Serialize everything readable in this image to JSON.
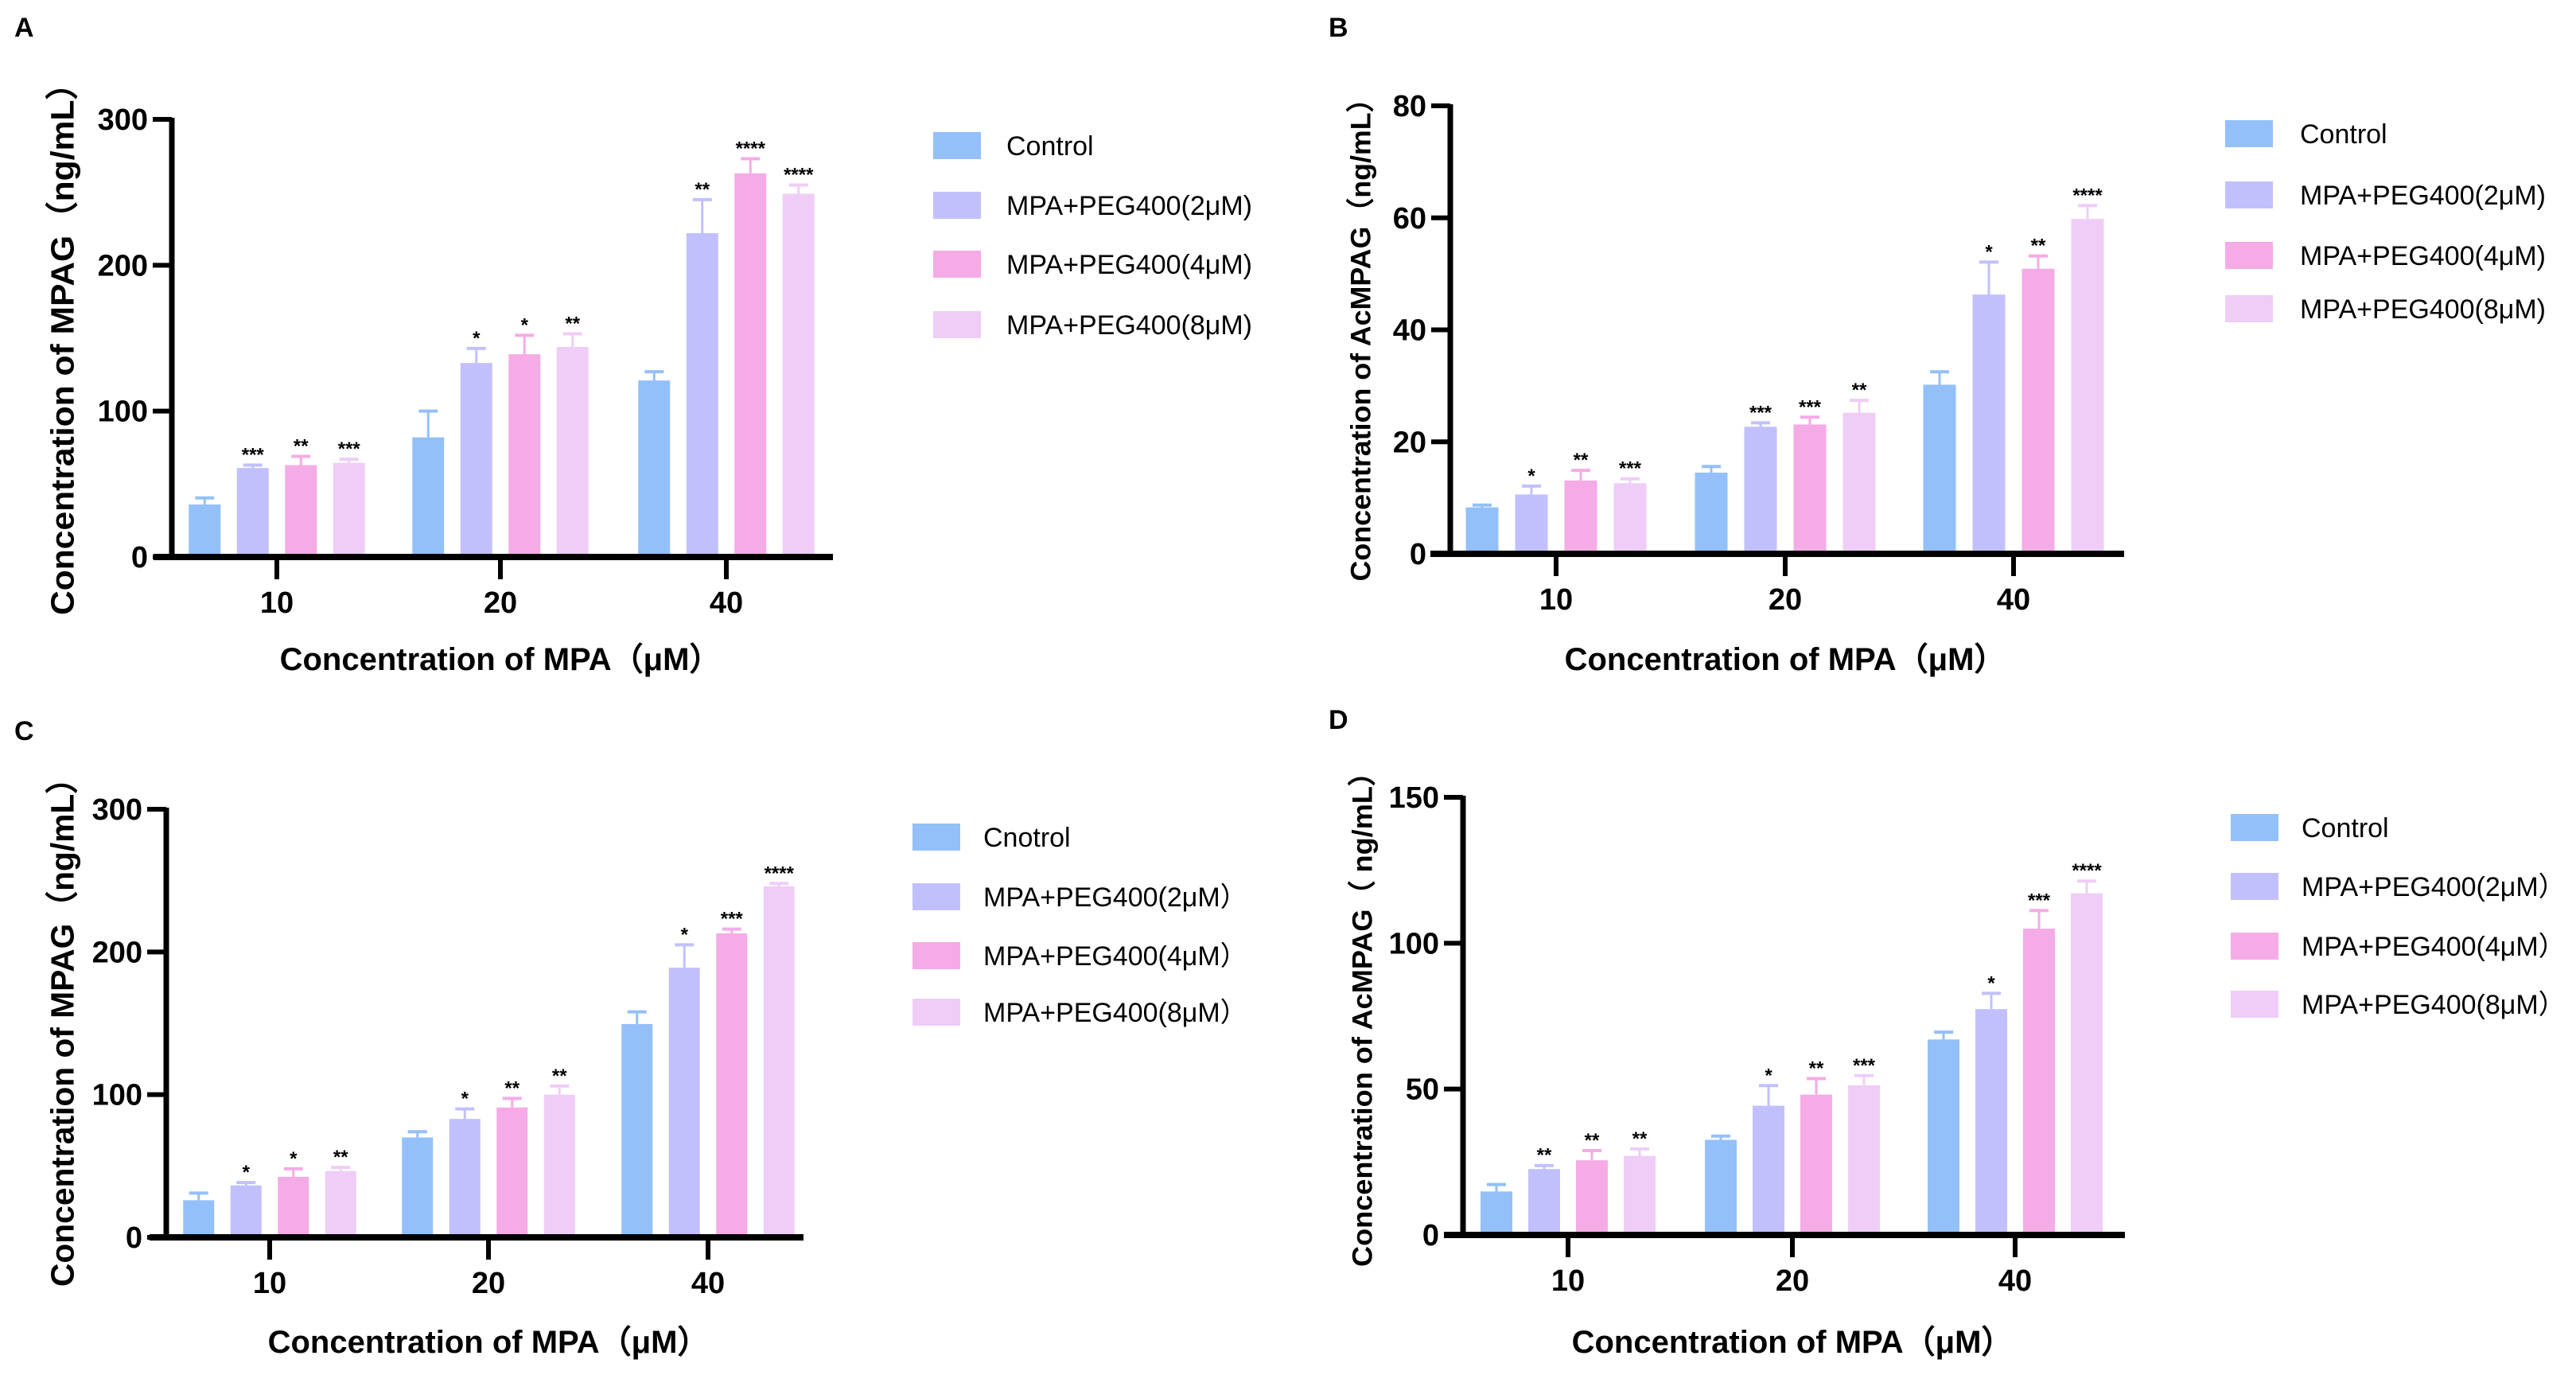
{
  "colors": {
    "Control": "#93C0F8",
    "2uM": "#C2C0FC",
    "4uM": "#F5ABE6",
    "8uM": "#EFCDF7",
    "axis": "#000000"
  },
  "chart_data": [
    {
      "panel": "A",
      "type": "bar",
      "title": "",
      "xlabel": "Concentration of MPA（μM）",
      "ylabel": "Concentration of MPAG（ng/mL）",
      "categories": [
        "10",
        "20",
        "40"
      ],
      "ylim": [
        0,
        300
      ],
      "yticks": [
        "0",
        "100",
        "200",
        "300"
      ],
      "ytick_values": [
        0,
        100,
        200,
        300
      ],
      "legend": "right",
      "series": [
        {
          "name": "Control",
          "values": [
            36,
            82,
            121
          ],
          "errors": [
            4.5,
            18,
            6
          ],
          "sig": [
            "",
            "",
            ""
          ]
        },
        {
          "name": "MPA+PEG400(2μM)",
          "values": [
            61,
            133,
            222
          ],
          "errors": [
            2,
            10,
            23
          ],
          "sig": [
            "***",
            "*",
            "**"
          ]
        },
        {
          "name": "MPA+PEG400(4μM)",
          "values": [
            63,
            139,
            263
          ],
          "errors": [
            6,
            13,
            10
          ],
          "sig": [
            "**",
            "*",
            "****"
          ]
        },
        {
          "name": "MPA+PEG400(8μM)",
          "values": [
            64.5,
            144,
            249
          ],
          "errors": [
            2.5,
            9,
            6
          ],
          "sig": [
            "***",
            "**",
            "****"
          ]
        }
      ]
    },
    {
      "panel": "B",
      "type": "bar",
      "title": "",
      "xlabel": "Concentration of MPA（μM）",
      "ylabel": "Concentration of AcMPAG（ng/mL）",
      "categories": [
        "10",
        "20",
        "40"
      ],
      "ylim": [
        0,
        80
      ],
      "yticks": [
        "0",
        "20",
        "40",
        "60",
        "80"
      ],
      "ytick_values": [
        0,
        20,
        40,
        60,
        80
      ],
      "legend": "right",
      "series": [
        {
          "name": "Control",
          "values": [
            8.3,
            14.5,
            30.2
          ],
          "errors": [
            0.4,
            1.1,
            2.3
          ],
          "sig": [
            "",
            "",
            ""
          ]
        },
        {
          "name": "MPA+PEG400(2μM)",
          "values": [
            10.6,
            22.7,
            46.3
          ],
          "errors": [
            1.5,
            0.7,
            5.8
          ],
          "sig": [
            "*",
            "***",
            "*"
          ]
        },
        {
          "name": "MPA+PEG400(4μM)",
          "values": [
            13.1,
            23.1,
            50.9
          ],
          "errors": [
            1.8,
            1.3,
            2.3
          ],
          "sig": [
            "**",
            "***",
            "**"
          ]
        },
        {
          "name": "MPA+PEG400(8μM)",
          "values": [
            12.6,
            25.2,
            59.8
          ],
          "errors": [
            0.8,
            2.2,
            2.4
          ],
          "sig": [
            "***",
            "**",
            "****"
          ]
        }
      ]
    },
    {
      "panel": "C",
      "type": "bar",
      "title": "",
      "xlabel": "Concentration of MPA（μM）",
      "ylabel": "Concentration of MPAG（ng/mL）",
      "categories": [
        "10",
        "20",
        "40"
      ],
      "ylim": [
        0,
        300
      ],
      "yticks": [
        "0",
        "100",
        "200",
        "300"
      ],
      "ytick_values": [
        0,
        100,
        200,
        300
      ],
      "legend": "right",
      "series": [
        {
          "name": "Cnotrol",
          "values": [
            26,
            70,
            149.5
          ],
          "errors": [
            5,
            4,
            8.5
          ],
          "sig": [
            "",
            "",
            ""
          ]
        },
        {
          "name": "MPA+PEG400(2μM）",
          "values": [
            36.4,
            83,
            189
          ],
          "errors": [
            2,
            7,
            16
          ],
          "sig": [
            "*",
            "*",
            "*"
          ]
        },
        {
          "name": "MPA+PEG400(4μM）",
          "values": [
            42.4,
            91,
            213
          ],
          "errors": [
            5.6,
            6.4,
            3
          ],
          "sig": [
            "*",
            "**",
            "***"
          ]
        },
        {
          "name": "MPA+PEG400(8μM）",
          "values": [
            46.5,
            100,
            246
          ],
          "errors": [
            2.5,
            6,
            2
          ],
          "sig": [
            "**",
            "**",
            "****"
          ]
        }
      ]
    },
    {
      "panel": "D",
      "type": "bar",
      "title": "",
      "xlabel": "Concentration of MPA（μM）",
      "ylabel": "Concentration of AcMPAG（ ng/mL）",
      "categories": [
        "10",
        "20",
        "40"
      ],
      "ylim": [
        0,
        150
      ],
      "yticks": [
        "0",
        "50",
        "100",
        "150"
      ],
      "ytick_values": [
        0,
        50,
        100,
        150
      ],
      "legend": "right",
      "series": [
        {
          "name": "Control",
          "values": [
            14.9,
            32.6,
            67
          ],
          "errors": [
            2.4,
            1.3,
            2.5
          ],
          "sig": [
            "",
            "",
            ""
          ]
        },
        {
          "name": "MPA+PEG400(2μM）",
          "values": [
            22.6,
            44.3,
            77.4
          ],
          "errors": [
            1.2,
            6.9,
            5.4
          ],
          "sig": [
            "**",
            "*",
            "*"
          ]
        },
        {
          "name": "MPA+PEG400(4μM）",
          "values": [
            25.6,
            48.1,
            105
          ],
          "errors": [
            3.3,
            5.5,
            6.2
          ],
          "sig": [
            "**",
            "**",
            "***"
          ]
        },
        {
          "name": "MPA+PEG400(8μM）",
          "values": [
            27.1,
            51.3,
            117.1
          ],
          "errors": [
            2.4,
            3.3,
            4.2
          ],
          "sig": [
            "**",
            "***",
            "****"
          ]
        }
      ]
    }
  ]
}
